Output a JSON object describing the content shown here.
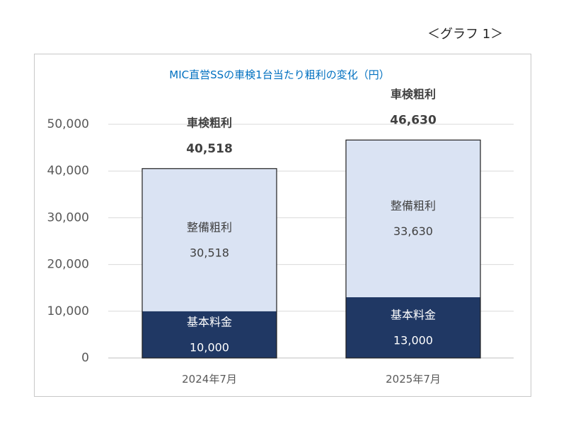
{
  "graph_label": "＜グラフ 1＞",
  "colors": {
    "base": "#203864",
    "maintenance": "#dae3f3",
    "title": "#0070c0",
    "grid": "#d9d9d9"
  },
  "chart_data": {
    "type": "bar",
    "stacked": true,
    "title": "MIC直営SSの車検1台当たり粗利の変化（円）",
    "categories": [
      "2024年7月",
      "2025年7月"
    ],
    "ylim": [
      0,
      50000
    ],
    "yticks": [
      "0",
      "10,000",
      "20,000",
      "30,000",
      "40,000",
      "50,000"
    ],
    "grid": true,
    "series": [
      {
        "name": "基本料金",
        "values": [
          10000,
          13000
        ],
        "labels": [
          "10,000",
          "13,000"
        ]
      },
      {
        "name": "整備粗利",
        "values": [
          30518,
          33630
        ],
        "labels": [
          "30,518",
          "33,630"
        ]
      }
    ],
    "total_name": "車検粗利",
    "totals": [
      40518,
      46630
    ],
    "total_labels": [
      "40,518",
      "46,630"
    ]
  }
}
